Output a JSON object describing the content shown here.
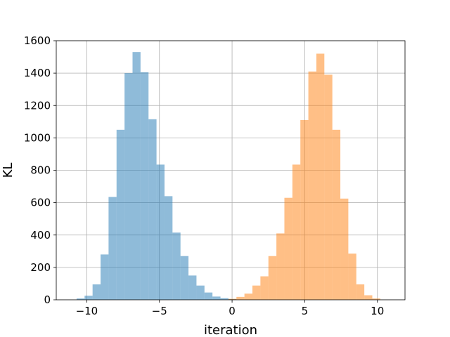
{
  "chart_data": {
    "type": "histogram",
    "xlabel": "iteration",
    "ylabel": "KL",
    "xlim": [
      -12.1,
      11.9
    ],
    "ylim": [
      0,
      1600
    ],
    "xticks": [
      -10,
      -5,
      0,
      5,
      10
    ],
    "xtick_labels": [
      "−10",
      "−5",
      "0",
      "5",
      "10"
    ],
    "yticks": [
      0,
      200,
      400,
      600,
      800,
      1000,
      1200,
      1400,
      1600
    ],
    "ytick_labels": [
      "0",
      "200",
      "400",
      "600",
      "800",
      "1000",
      "1200",
      "1400",
      "1600"
    ],
    "grid": true,
    "series": [
      {
        "color": "#1f77b4",
        "alpha": 0.5,
        "bins": [
          {
            "x0": -10.7,
            "x1": -10.15,
            "count": 8
          },
          {
            "x0": -10.15,
            "x1": -9.6,
            "count": 25
          },
          {
            "x0": -9.6,
            "x1": -9.05,
            "count": 95
          },
          {
            "x0": -9.05,
            "x1": -8.5,
            "count": 280
          },
          {
            "x0": -8.5,
            "x1": -7.95,
            "count": 635
          },
          {
            "x0": -7.95,
            "x1": -7.4,
            "count": 1050
          },
          {
            "x0": -7.4,
            "x1": -6.85,
            "count": 1400
          },
          {
            "x0": -6.85,
            "x1": -6.3,
            "count": 1530
          },
          {
            "x0": -6.3,
            "x1": -5.75,
            "count": 1405
          },
          {
            "x0": -5.75,
            "x1": -5.2,
            "count": 1115
          },
          {
            "x0": -5.2,
            "x1": -4.65,
            "count": 835
          },
          {
            "x0": -4.65,
            "x1": -4.1,
            "count": 640
          },
          {
            "x0": -4.1,
            "x1": -3.55,
            "count": 415
          },
          {
            "x0": -3.55,
            "x1": -3.0,
            "count": 270
          },
          {
            "x0": -3.0,
            "x1": -2.45,
            "count": 150
          },
          {
            "x0": -2.45,
            "x1": -1.9,
            "count": 88
          },
          {
            "x0": -1.9,
            "x1": -1.35,
            "count": 45
          },
          {
            "x0": -1.35,
            "x1": -0.8,
            "count": 20
          },
          {
            "x0": -0.8,
            "x1": -0.25,
            "count": 10
          },
          {
            "x0": -0.25,
            "x1": 0.3,
            "count": 4
          }
        ]
      },
      {
        "color": "#ff7f0e",
        "alpha": 0.5,
        "bins": [
          {
            "x0": -0.25,
            "x1": 0.3,
            "count": 6
          },
          {
            "x0": 0.3,
            "x1": 0.85,
            "count": 18
          },
          {
            "x0": 0.85,
            "x1": 1.4,
            "count": 38
          },
          {
            "x0": 1.4,
            "x1": 1.95,
            "count": 88
          },
          {
            "x0": 1.95,
            "x1": 2.5,
            "count": 145
          },
          {
            "x0": 2.5,
            "x1": 3.05,
            "count": 270
          },
          {
            "x0": 3.05,
            "x1": 3.6,
            "count": 410
          },
          {
            "x0": 3.6,
            "x1": 4.15,
            "count": 630
          },
          {
            "x0": 4.15,
            "x1": 4.7,
            "count": 835
          },
          {
            "x0": 4.7,
            "x1": 5.25,
            "count": 1110
          },
          {
            "x0": 5.25,
            "x1": 5.8,
            "count": 1410
          },
          {
            "x0": 5.8,
            "x1": 6.35,
            "count": 1520
          },
          {
            "x0": 6.35,
            "x1": 6.9,
            "count": 1390
          },
          {
            "x0": 6.9,
            "x1": 7.45,
            "count": 1050
          },
          {
            "x0": 7.45,
            "x1": 8.0,
            "count": 625
          },
          {
            "x0": 8.0,
            "x1": 8.55,
            "count": 285
          },
          {
            "x0": 8.55,
            "x1": 9.1,
            "count": 95
          },
          {
            "x0": 9.1,
            "x1": 9.65,
            "count": 28
          },
          {
            "x0": 9.65,
            "x1": 10.2,
            "count": 8
          }
        ]
      }
    ]
  }
}
